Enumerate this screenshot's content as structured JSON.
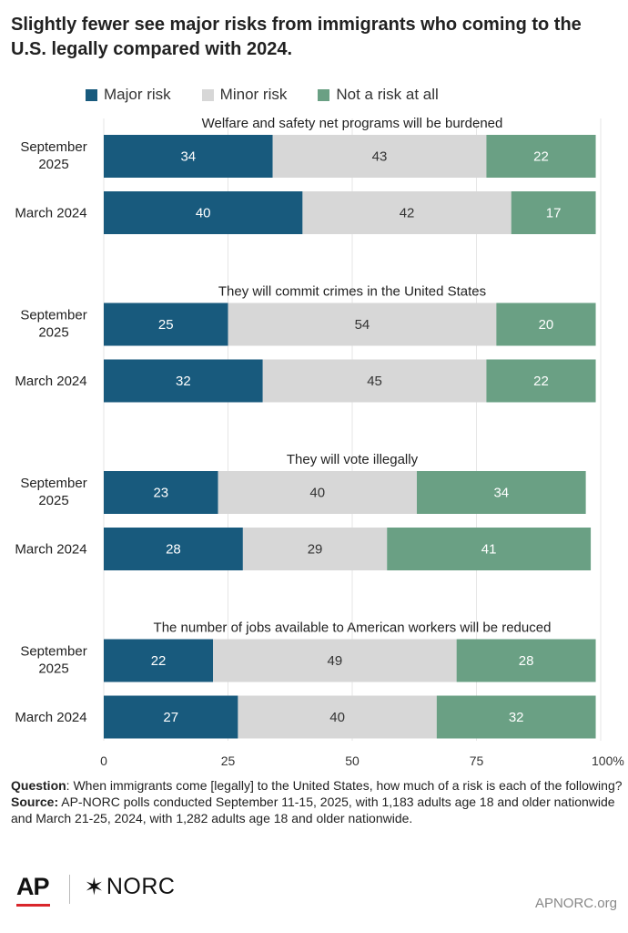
{
  "title": "Slightly fewer see major risks from immigrants who coming to the U.S. legally compared with 2024.",
  "chart_data": {
    "type": "bar",
    "orientation": "horizontal",
    "stacked": true,
    "legend_position": "top",
    "series": [
      {
        "name": "Major risk",
        "color": "#185a7d"
      },
      {
        "name": "Minor risk",
        "color": "#d7d7d7"
      },
      {
        "name": "Not a risk at all",
        "color": "#6aa084"
      }
    ],
    "panels": [
      {
        "title": "Welfare and safety net programs will be burdened",
        "rows": [
          {
            "label": [
              "September",
              "2025"
            ],
            "values": [
              34,
              43,
              22
            ]
          },
          {
            "label": [
              "March 2024"
            ],
            "values": [
              40,
              42,
              17
            ]
          }
        ]
      },
      {
        "title": "They will commit crimes in the United States",
        "rows": [
          {
            "label": [
              "September",
              "2025"
            ],
            "values": [
              25,
              54,
              20
            ]
          },
          {
            "label": [
              "March 2024"
            ],
            "values": [
              32,
              45,
              22
            ]
          }
        ]
      },
      {
        "title": "They will vote illegally",
        "rows": [
          {
            "label": [
              "September",
              "2025"
            ],
            "values": [
              23,
              40,
              34
            ]
          },
          {
            "label": [
              "March 2024"
            ],
            "values": [
              28,
              29,
              41
            ]
          }
        ]
      },
      {
        "title": "The number of jobs available to American workers will be reduced",
        "rows": [
          {
            "label": [
              "September",
              "2025"
            ],
            "values": [
              22,
              49,
              28
            ]
          },
          {
            "label": [
              "March 2024"
            ],
            "values": [
              27,
              40,
              32
            ]
          }
        ]
      }
    ],
    "xlim": [
      0,
      100
    ],
    "xticks": [
      "0",
      "25",
      "50",
      "75",
      "100%"
    ],
    "grid": true
  },
  "notes": {
    "question_label": "Question",
    "question_text": ": When immigrants come [legally] to the United States, how much of a risk is each of the following?",
    "source_label": "Source:",
    "source_text": " AP-NORC polls conducted September 11-15, 2025, with 1,183 adults age 18 and older nationwide and March 21-25, 2024, with 1,282 adults age 18 and older nationwide."
  },
  "footer": {
    "ap_logo": "AP",
    "norc_logo": "NORC",
    "norc_star": "✶",
    "site": "APNORC.org"
  }
}
